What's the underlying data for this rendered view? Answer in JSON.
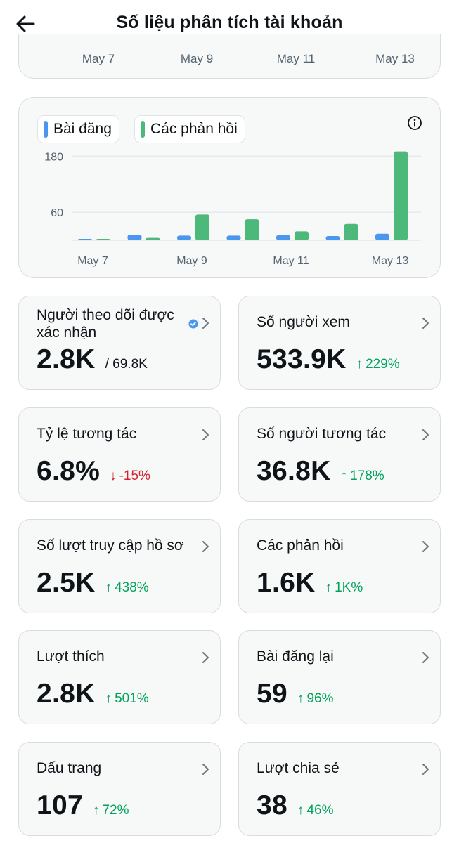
{
  "header": {
    "title": "Số liệu phân tích tài khoản"
  },
  "top_chart": {
    "x_ticks": [
      "May 7",
      "May 9",
      "May 11",
      "May 13"
    ]
  },
  "chart_data": {
    "type": "bar",
    "categories": [
      "May 7",
      "May 8",
      "May 9",
      "May 10",
      "May 11",
      "May 12",
      "May 13"
    ],
    "x_ticks": [
      "May 7",
      "May 9",
      "May 11",
      "May 13"
    ],
    "series": [
      {
        "name": "Bài đăng",
        "color": "#4b97f0",
        "values": [
          1,
          12,
          10,
          10,
          11,
          9,
          14
        ]
      },
      {
        "name": "Các phản hồi",
        "color": "#4cb87a",
        "values": [
          0,
          5,
          55,
          45,
          19,
          35,
          190
        ]
      }
    ],
    "y_ticks": [
      60,
      180
    ],
    "ylim": [
      0,
      200
    ],
    "grid": true,
    "legend": "top-left"
  },
  "tiles": [
    {
      "label": "Người theo dõi được xác nhận",
      "value": "2.8K",
      "secondary": "/ 69.8K"
    },
    {
      "label": "Số người xem",
      "value": "533.9K",
      "change": "229%",
      "direction": "up"
    },
    {
      "label": "Tỷ lệ tương tác",
      "value": "6.8%",
      "change": "-15%",
      "direction": "down"
    },
    {
      "label": "Số người tương tác",
      "value": "36.8K",
      "change": "178%",
      "direction": "up"
    },
    {
      "label": "Số lượt truy cập hồ sơ",
      "value": "2.5K",
      "change": "438%",
      "direction": "up"
    },
    {
      "label": "Các phản hồi",
      "value": "1.6K",
      "change": "1K%",
      "direction": "up"
    },
    {
      "label": "Lượt thích",
      "value": "2.8K",
      "change": "501%",
      "direction": "up"
    },
    {
      "label": "Bài đăng lại",
      "value": "59",
      "change": "96%",
      "direction": "up"
    },
    {
      "label": "Dấu trang",
      "value": "107",
      "change": "72%",
      "direction": "up"
    },
    {
      "label": "Lượt chia sẻ",
      "value": "38",
      "change": "46%",
      "direction": "up"
    }
  ],
  "icons": {
    "back": "arrow-left-icon",
    "info": "info-icon",
    "chevron": "chevron-right-icon",
    "verified": "verified-badge-icon"
  },
  "colors": {
    "posts": "#4b97f0",
    "replies": "#4cb87a",
    "up": "#00a35a",
    "down": "#d0212c"
  }
}
